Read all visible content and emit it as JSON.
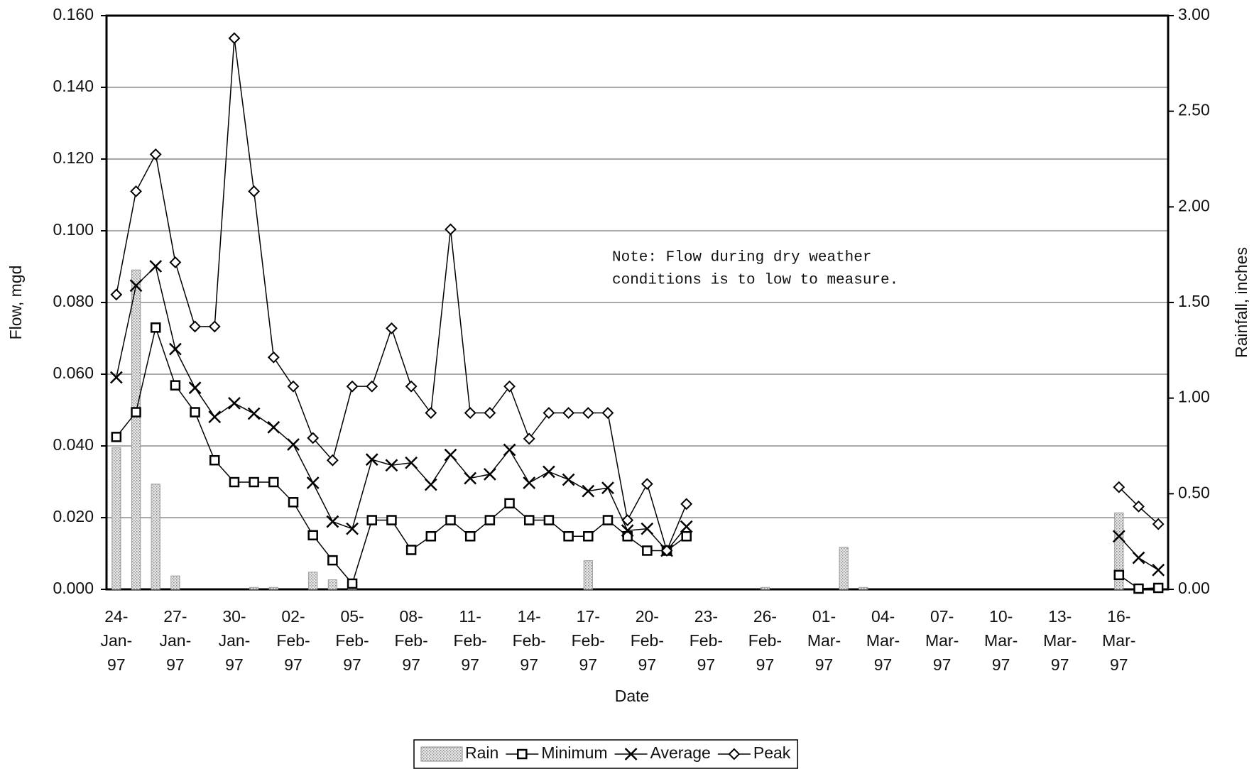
{
  "chart_data": {
    "type": "line",
    "x_label": "Date",
    "y_label": "Flow, mgd",
    "y2_label": "Rainfall, inches",
    "annotation": [
      "Note: Flow during dry weather",
      "conditions is to low to measure."
    ],
    "categories": [
      "24-Jan-97",
      null,
      null,
      "27-Jan-97",
      null,
      null,
      "30-Jan-97",
      null,
      null,
      "02-Feb-97",
      null,
      null,
      "05-Feb-97",
      null,
      null,
      "08-Feb-97",
      null,
      null,
      "11-Feb-97",
      null,
      null,
      "14-Feb-97",
      null,
      null,
      "17-Feb-97",
      null,
      null,
      "20-Feb-97",
      null,
      null,
      "23-Feb-97",
      null,
      null,
      "26-Feb-97",
      null,
      null,
      "01-Mar-97",
      null,
      null,
      "04-Mar-97",
      null,
      null,
      "07-Mar-97",
      null,
      null,
      "10-Mar-97",
      null,
      null,
      "13-Mar-97",
      null,
      null,
      "16-Mar-97",
      null,
      null
    ],
    "series": [
      {
        "name": "Rain",
        "type": "bar",
        "axis": "y2",
        "color": "#bdbdbd",
        "values": [
          0.74,
          1.67,
          0.55,
          0.07,
          0,
          0,
          0,
          0.01,
          0.01,
          0,
          0.09,
          0.05,
          0.01,
          0,
          0,
          0,
          0,
          0,
          0,
          0,
          0,
          0,
          0,
          0,
          0.15,
          0,
          0,
          0,
          0,
          0,
          0,
          0,
          0,
          0.01,
          0,
          0,
          0,
          0.22,
          0.01,
          0,
          0,
          0,
          0,
          0,
          0,
          0,
          0,
          0,
          0,
          0,
          0,
          0.4,
          0.02,
          0.02
        ]
      },
      {
        "name": "Minimum",
        "type": "line",
        "marker": "square",
        "color": "#000000",
        "values": [
          0.0425,
          0.0494,
          0.073,
          0.0569,
          0.0494,
          0.036,
          0.0299,
          0.0299,
          0.0299,
          0.0243,
          0.0151,
          0.0081,
          0.0016,
          0.0193,
          0.0193,
          0.011,
          0.0148,
          0.0193,
          0.0148,
          0.0193,
          0.024,
          0.0193,
          0.0193,
          0.0148,
          0.0148,
          0.0193,
          0.0148,
          0.0108,
          0.0108,
          0.0148,
          null,
          null,
          null,
          null,
          null,
          null,
          null,
          null,
          null,
          null,
          null,
          null,
          null,
          null,
          null,
          null,
          null,
          null,
          null,
          null,
          null,
          0.004,
          0.0002,
          0.0004
        ]
      },
      {
        "name": "Average",
        "type": "line",
        "marker": "x",
        "color": "#000000",
        "values": [
          0.0591,
          0.0847,
          0.0901,
          0.067,
          0.0562,
          0.0481,
          0.0519,
          0.049,
          0.0452,
          0.0404,
          0.0297,
          0.0189,
          0.0169,
          0.0362,
          0.0346,
          0.0353,
          0.0292,
          0.0375,
          0.031,
          0.0321,
          0.0389,
          0.0297,
          0.0328,
          0.0306,
          0.0274,
          0.0283,
          0.0164,
          0.0169,
          0.0108,
          0.0175,
          null,
          null,
          null,
          null,
          null,
          null,
          null,
          null,
          null,
          null,
          null,
          null,
          null,
          null,
          null,
          null,
          null,
          null,
          null,
          null,
          null,
          0.0148,
          0.0088,
          0.0054
        ]
      },
      {
        "name": "Peak",
        "type": "line",
        "marker": "diamond",
        "color": "#000000",
        "values": [
          0.0822,
          0.111,
          0.1213,
          0.0912,
          0.0733,
          0.0733,
          0.1537,
          0.111,
          0.0647,
          0.0566,
          0.0422,
          0.036,
          0.0566,
          0.0566,
          0.0728,
          0.0566,
          0.0492,
          0.1004,
          0.0492,
          0.0492,
          0.0566,
          0.042,
          0.0492,
          0.0492,
          0.0492,
          0.0492,
          0.0193,
          0.0294,
          0.0108,
          0.0238,
          null,
          null,
          null,
          null,
          null,
          null,
          null,
          null,
          null,
          null,
          null,
          null,
          null,
          null,
          null,
          null,
          null,
          null,
          null,
          null,
          null,
          0.0285,
          0.0231,
          0.0182
        ]
      }
    ],
    "ylim": [
      0,
      0.16
    ],
    "yticks": [
      {
        "value": 0,
        "label": "0.000"
      },
      {
        "value": 0.02,
        "label": "0.020"
      },
      {
        "value": 0.04,
        "label": "0.040"
      },
      {
        "value": 0.06,
        "label": "0.060"
      },
      {
        "value": 0.08,
        "label": "0.080"
      },
      {
        "value": 0.1,
        "label": "0.100"
      },
      {
        "value": 0.12,
        "label": "0.120"
      },
      {
        "value": 0.14,
        "label": "0.140"
      },
      {
        "value": 0.16,
        "label": "0.160"
      }
    ],
    "y2lim": [
      0,
      3
    ],
    "y2ticks": [
      {
        "value": 0,
        "label": "0.00"
      },
      {
        "value": 0.5,
        "label": "0.50"
      },
      {
        "value": 1,
        "label": "1.00"
      },
      {
        "value": 1.5,
        "label": "1.50"
      },
      {
        "value": 2,
        "label": "2.00"
      },
      {
        "value": 2.5,
        "label": "2.50"
      },
      {
        "value": 3,
        "label": "3.00"
      }
    ],
    "grid": true,
    "legend": "bottom"
  }
}
